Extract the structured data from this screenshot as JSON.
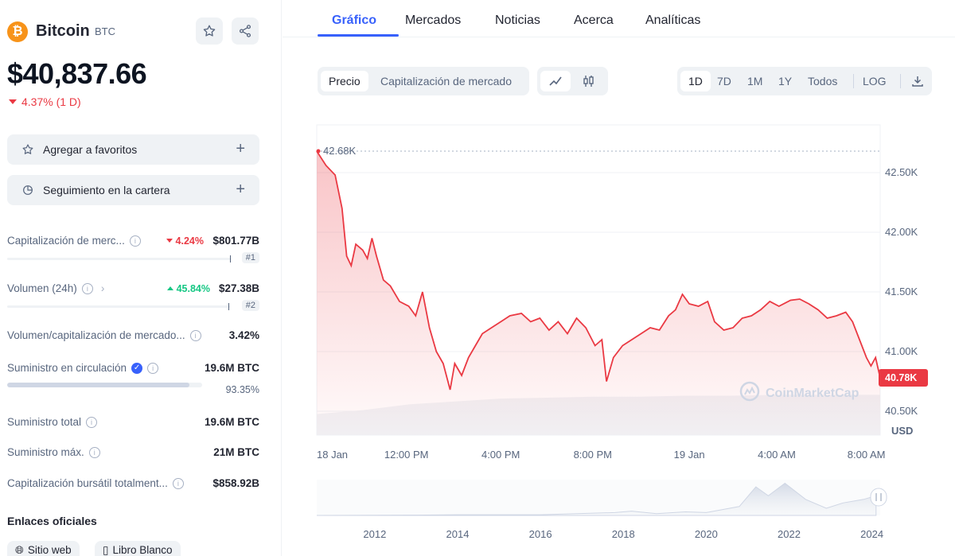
{
  "coin": {
    "name": "Bitcoin",
    "symbol": "BTC",
    "logo_glyph": "₿",
    "price": "$40,837.66",
    "change": "4.37% (1 D)"
  },
  "actions": {
    "favorites": "Agregar a favoritos",
    "portfolio": "Seguimiento en la cartera"
  },
  "stats": [
    {
      "label": "Capitalización de merc...",
      "pct": "4.24%",
      "pct_dir": "down",
      "value": "$801.77B",
      "rank": "#1"
    },
    {
      "label": "Volumen (24h)",
      "pct": "45.84%",
      "pct_dir": "up",
      "value": "$27.38B",
      "rank": "#2"
    },
    {
      "label": "Volumen/capitalización de mercado...",
      "value": "3.42%"
    },
    {
      "label": "Suministro en circulación",
      "value": "19.6M BTC",
      "supply_pct": "93.35%",
      "supply_fraction": 0.9335
    },
    {
      "label": "Suministro total",
      "value": "19.6M BTC"
    },
    {
      "label": "Suministro máx.",
      "value": "21M BTC"
    },
    {
      "label": "Capitalización bursátil totalment...",
      "value": "$858.92B"
    }
  ],
  "links": {
    "title": "Enlaces oficiales",
    "website": "Sitio web",
    "whitepaper": "Libro Blanco"
  },
  "tabs": [
    "Gráfico",
    "Mercados",
    "Noticias",
    "Acerca",
    "Analíticas"
  ],
  "toolbar": {
    "metric": [
      "Precio",
      "Capitalización de mercado"
    ],
    "ranges": [
      "1D",
      "7D",
      "1M",
      "1Y",
      "Todos"
    ],
    "log": "LOG"
  },
  "colors": {
    "accent": "#3861fb",
    "down": "#ea3943",
    "up": "#16c784",
    "btc": "#f7931a"
  },
  "chart_data": {
    "type": "area",
    "currency": "USD",
    "watermark": "CoinMarketCap",
    "high_label": "42.68K",
    "current_label": "40.78K",
    "y_ticks": [
      "42.50K",
      "42.00K",
      "41.50K",
      "41.00K",
      "40.50K"
    ],
    "y_tick_values": [
      42500,
      42000,
      41500,
      41000,
      40500
    ],
    "ylim": [
      40300,
      42900
    ],
    "x_ticks": [
      "18 Jan",
      "12:00 PM",
      "4:00 PM",
      "8:00 PM",
      "19 Jan",
      "4:00 AM",
      "8:00 AM"
    ],
    "x_tick_hours": [
      0,
      3.9,
      8,
      12,
      16.2,
      20,
      23.9
    ],
    "price_series": [
      [
        0.0,
        42680
      ],
      [
        0.4,
        42560
      ],
      [
        0.8,
        42480
      ],
      [
        1.1,
        42200
      ],
      [
        1.3,
        41800
      ],
      [
        1.5,
        41720
      ],
      [
        1.7,
        41900
      ],
      [
        2.0,
        41850
      ],
      [
        2.2,
        41780
      ],
      [
        2.4,
        41950
      ],
      [
        2.6,
        41800
      ],
      [
        2.9,
        41600
      ],
      [
        3.2,
        41550
      ],
      [
        3.6,
        41420
      ],
      [
        4.0,
        41380
      ],
      [
        4.3,
        41300
      ],
      [
        4.6,
        41500
      ],
      [
        4.9,
        41200
      ],
      [
        5.2,
        41000
      ],
      [
        5.5,
        40900
      ],
      [
        5.8,
        40680
      ],
      [
        6.0,
        40900
      ],
      [
        6.3,
        40800
      ],
      [
        6.6,
        40950
      ],
      [
        6.9,
        41050
      ],
      [
        7.2,
        41150
      ],
      [
        7.6,
        41200
      ],
      [
        8.0,
        41250
      ],
      [
        8.4,
        41300
      ],
      [
        8.9,
        41320
      ],
      [
        9.3,
        41250
      ],
      [
        9.7,
        41280
      ],
      [
        10.1,
        41180
      ],
      [
        10.5,
        41250
      ],
      [
        10.9,
        41150
      ],
      [
        11.3,
        41280
      ],
      [
        11.7,
        41200
      ],
      [
        12.1,
        41050
      ],
      [
        12.4,
        41100
      ],
      [
        12.6,
        40750
      ],
      [
        12.9,
        40950
      ],
      [
        13.3,
        41050
      ],
      [
        13.7,
        41100
      ],
      [
        14.1,
        41150
      ],
      [
        14.5,
        41200
      ],
      [
        14.9,
        41180
      ],
      [
        15.3,
        41300
      ],
      [
        15.6,
        41350
      ],
      [
        15.9,
        41480
      ],
      [
        16.2,
        41400
      ],
      [
        16.6,
        41380
      ],
      [
        17.0,
        41420
      ],
      [
        17.3,
        41250
      ],
      [
        17.7,
        41180
      ],
      [
        18.1,
        41200
      ],
      [
        18.5,
        41280
      ],
      [
        18.9,
        41300
      ],
      [
        19.3,
        41350
      ],
      [
        19.7,
        41420
      ],
      [
        20.1,
        41380
      ],
      [
        20.6,
        41430
      ],
      [
        21.0,
        41440
      ],
      [
        21.4,
        41400
      ],
      [
        21.8,
        41350
      ],
      [
        22.2,
        41280
      ],
      [
        22.6,
        41300
      ],
      [
        23.0,
        41330
      ],
      [
        23.3,
        41250
      ],
      [
        23.6,
        41100
      ],
      [
        23.9,
        40950
      ],
      [
        24.1,
        40880
      ],
      [
        24.3,
        40950
      ],
      [
        24.5,
        40780
      ]
    ],
    "volume_series": [
      [
        0,
        0.22
      ],
      [
        2,
        0.26
      ],
      [
        4,
        0.32
      ],
      [
        6,
        0.35
      ],
      [
        8,
        0.38
      ],
      [
        10,
        0.39
      ],
      [
        12,
        0.4
      ],
      [
        14,
        0.4
      ],
      [
        16,
        0.41
      ],
      [
        18,
        0.41
      ],
      [
        20,
        0.42
      ],
      [
        22,
        0.42
      ],
      [
        24.5,
        0.42
      ]
    ],
    "navigator": {
      "x_ticks": [
        "2012",
        "2014",
        "2016",
        "2018",
        "2020",
        "2022",
        "2024"
      ],
      "x_tick_years": [
        2012,
        2014,
        2016,
        2018,
        2020,
        2022,
        2024
      ],
      "xlim": [
        2010.6,
        2024.2
      ],
      "series": [
        [
          2010.6,
          0.0
        ],
        [
          2013.0,
          0.01
        ],
        [
          2014.0,
          0.02
        ],
        [
          2016.0,
          0.02
        ],
        [
          2017.8,
          0.08
        ],
        [
          2018.2,
          0.12
        ],
        [
          2018.8,
          0.05
        ],
        [
          2019.5,
          0.1
        ],
        [
          2020.0,
          0.08
        ],
        [
          2020.8,
          0.25
        ],
        [
          2021.2,
          0.8
        ],
        [
          2021.5,
          0.55
        ],
        [
          2021.9,
          0.9
        ],
        [
          2022.4,
          0.45
        ],
        [
          2022.9,
          0.2
        ],
        [
          2023.3,
          0.35
        ],
        [
          2023.8,
          0.45
        ],
        [
          2024.1,
          0.55
        ]
      ]
    }
  }
}
